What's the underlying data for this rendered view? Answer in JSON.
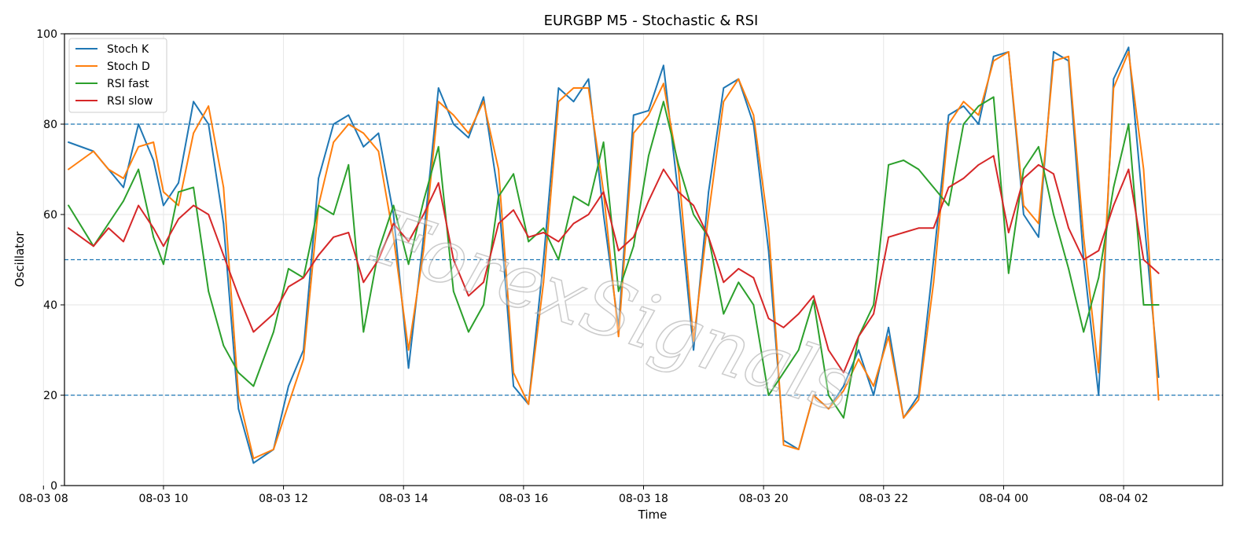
{
  "chart_data": {
    "type": "line",
    "title": "EURGBP M5 - Stochastic & RSI",
    "xlabel": "Time",
    "ylabel": "Oscillator",
    "ylim": [
      0,
      100
    ],
    "xlim": [
      "2024-08-03T08:21",
      "2024-08-04T03:39"
    ],
    "yticks": [
      0,
      20,
      40,
      60,
      80,
      100
    ],
    "xticks": [
      "08-03 08",
      "08-03 10",
      "08-03 12",
      "08-03 14",
      "08-03 16",
      "08-03 18",
      "08-03 20",
      "08-03 22",
      "08-04 00",
      "08-04 02"
    ],
    "xtick_times": [
      "2024-08-03T08:00",
      "2024-08-03T10:00",
      "2024-08-03T12:00",
      "2024-08-03T14:00",
      "2024-08-03T16:00",
      "2024-08-03T18:00",
      "2024-08-03T20:00",
      "2024-08-03T22:00",
      "2024-08-04T00:00",
      "2024-08-04T02:00"
    ],
    "grid": true,
    "legend": "top-left",
    "reference_lines": [
      {
        "y": 80,
        "style": "dashed",
        "color": "#1f77b4"
      },
      {
        "y": 50,
        "style": "dashed",
        "color": "#1f77b4"
      },
      {
        "y": 20,
        "style": "dashed",
        "color": "#1f77b4"
      }
    ],
    "x": [
      "2024-08-03T08:25",
      "2024-08-03T08:50",
      "2024-08-03T09:05",
      "2024-08-03T09:20",
      "2024-08-03T09:35",
      "2024-08-03T09:50",
      "2024-08-03T10:00",
      "2024-08-03T10:15",
      "2024-08-03T10:30",
      "2024-08-03T10:45",
      "2024-08-03T11:00",
      "2024-08-03T11:15",
      "2024-08-03T11:30",
      "2024-08-03T11:50",
      "2024-08-03T12:05",
      "2024-08-03T12:20",
      "2024-08-03T12:35",
      "2024-08-03T12:50",
      "2024-08-03T13:05",
      "2024-08-03T13:20",
      "2024-08-03T13:35",
      "2024-08-03T13:50",
      "2024-08-03T14:05",
      "2024-08-03T14:20",
      "2024-08-03T14:35",
      "2024-08-03T14:50",
      "2024-08-03T15:05",
      "2024-08-03T15:20",
      "2024-08-03T15:35",
      "2024-08-03T15:50",
      "2024-08-03T16:05",
      "2024-08-03T16:20",
      "2024-08-03T16:35",
      "2024-08-03T16:50",
      "2024-08-03T17:05",
      "2024-08-03T17:20",
      "2024-08-03T17:35",
      "2024-08-03T17:50",
      "2024-08-03T18:05",
      "2024-08-03T18:20",
      "2024-08-03T18:35",
      "2024-08-03T18:50",
      "2024-08-03T19:05",
      "2024-08-03T19:20",
      "2024-08-03T19:35",
      "2024-08-03T19:50",
      "2024-08-03T20:05",
      "2024-08-03T20:20",
      "2024-08-03T20:35",
      "2024-08-03T20:50",
      "2024-08-03T21:05",
      "2024-08-03T21:20",
      "2024-08-03T21:35",
      "2024-08-03T21:50",
      "2024-08-03T22:05",
      "2024-08-03T22:20",
      "2024-08-03T22:35",
      "2024-08-03T22:50",
      "2024-08-03T23:05",
      "2024-08-03T23:20",
      "2024-08-03T23:35",
      "2024-08-03T23:50",
      "2024-08-04T00:05",
      "2024-08-04T00:20",
      "2024-08-04T00:35",
      "2024-08-04T00:50",
      "2024-08-04T01:05",
      "2024-08-04T01:20",
      "2024-08-04T01:35",
      "2024-08-04T01:50",
      "2024-08-04T02:05",
      "2024-08-04T02:20",
      "2024-08-04T02:35"
    ],
    "series": [
      {
        "name": "Stoch K",
        "color": "#1f77b4",
        "values": [
          76,
          74,
          70,
          66,
          80,
          72,
          62,
          67,
          85,
          80,
          58,
          17,
          5,
          8,
          22,
          30,
          68,
          80,
          82,
          75,
          78,
          60,
          26,
          55,
          88,
          80,
          77,
          86,
          64,
          22,
          18,
          50,
          88,
          85,
          90,
          60,
          35,
          82,
          83,
          93,
          64,
          30,
          65,
          88,
          90,
          80,
          52,
          10,
          8,
          20,
          17,
          22,
          30,
          20,
          35,
          15,
          20,
          50,
          82,
          84,
          80,
          95,
          96,
          60,
          55,
          96,
          94,
          50,
          20,
          90,
          97,
          60,
          24
        ]
      },
      {
        "name": "Stoch D",
        "color": "#ff7f0e",
        "values": [
          70,
          74,
          70,
          68,
          75,
          76,
          65,
          62,
          78,
          84,
          66,
          20,
          6,
          8,
          18,
          28,
          62,
          76,
          80,
          78,
          74,
          55,
          30,
          52,
          85,
          82,
          78,
          85,
          70,
          25,
          18,
          45,
          85,
          88,
          88,
          65,
          33,
          78,
          82,
          89,
          70,
          32,
          60,
          85,
          90,
          82,
          57,
          9,
          8,
          20,
          17,
          21,
          28,
          22,
          33,
          15,
          19,
          45,
          80,
          85,
          82,
          94,
          96,
          62,
          58,
          94,
          95,
          55,
          25,
          88,
          96,
          70,
          19
        ]
      },
      {
        "name": "RSI fast",
        "color": "#2ca02c",
        "values": [
          62,
          53,
          58,
          63,
          70,
          55,
          49,
          65,
          66,
          43,
          31,
          25,
          22,
          34,
          48,
          46,
          62,
          60,
          71,
          34,
          52,
          62,
          49,
          63,
          75,
          43,
          34,
          40,
          64,
          69,
          54,
          57,
          50,
          64,
          62,
          76,
          43,
          53,
          73,
          85,
          71,
          60,
          55,
          38,
          45,
          40,
          20,
          25,
          30,
          41,
          20,
          15,
          33,
          40,
          71,
          72,
          70,
          66,
          62,
          80,
          84,
          86,
          47,
          70,
          75,
          60,
          48,
          34,
          46,
          66,
          80,
          40,
          40
        ]
      },
      {
        "name": "RSI slow",
        "color": "#d62728",
        "values": [
          57,
          53,
          57,
          54,
          62,
          57,
          53,
          59,
          62,
          60,
          51,
          42,
          34,
          38,
          44,
          46,
          51,
          55,
          56,
          45,
          50,
          58,
          54,
          60,
          67,
          50,
          42,
          45,
          58,
          61,
          55,
          56,
          54,
          58,
          60,
          65,
          52,
          55,
          63,
          70,
          65,
          62,
          55,
          45,
          48,
          46,
          37,
          35,
          38,
          42,
          30,
          25,
          33,
          38,
          55,
          56,
          57,
          57,
          66,
          68,
          71,
          73,
          56,
          68,
          71,
          69,
          57,
          50,
          52,
          62,
          70,
          50,
          47
        ]
      }
    ]
  }
}
